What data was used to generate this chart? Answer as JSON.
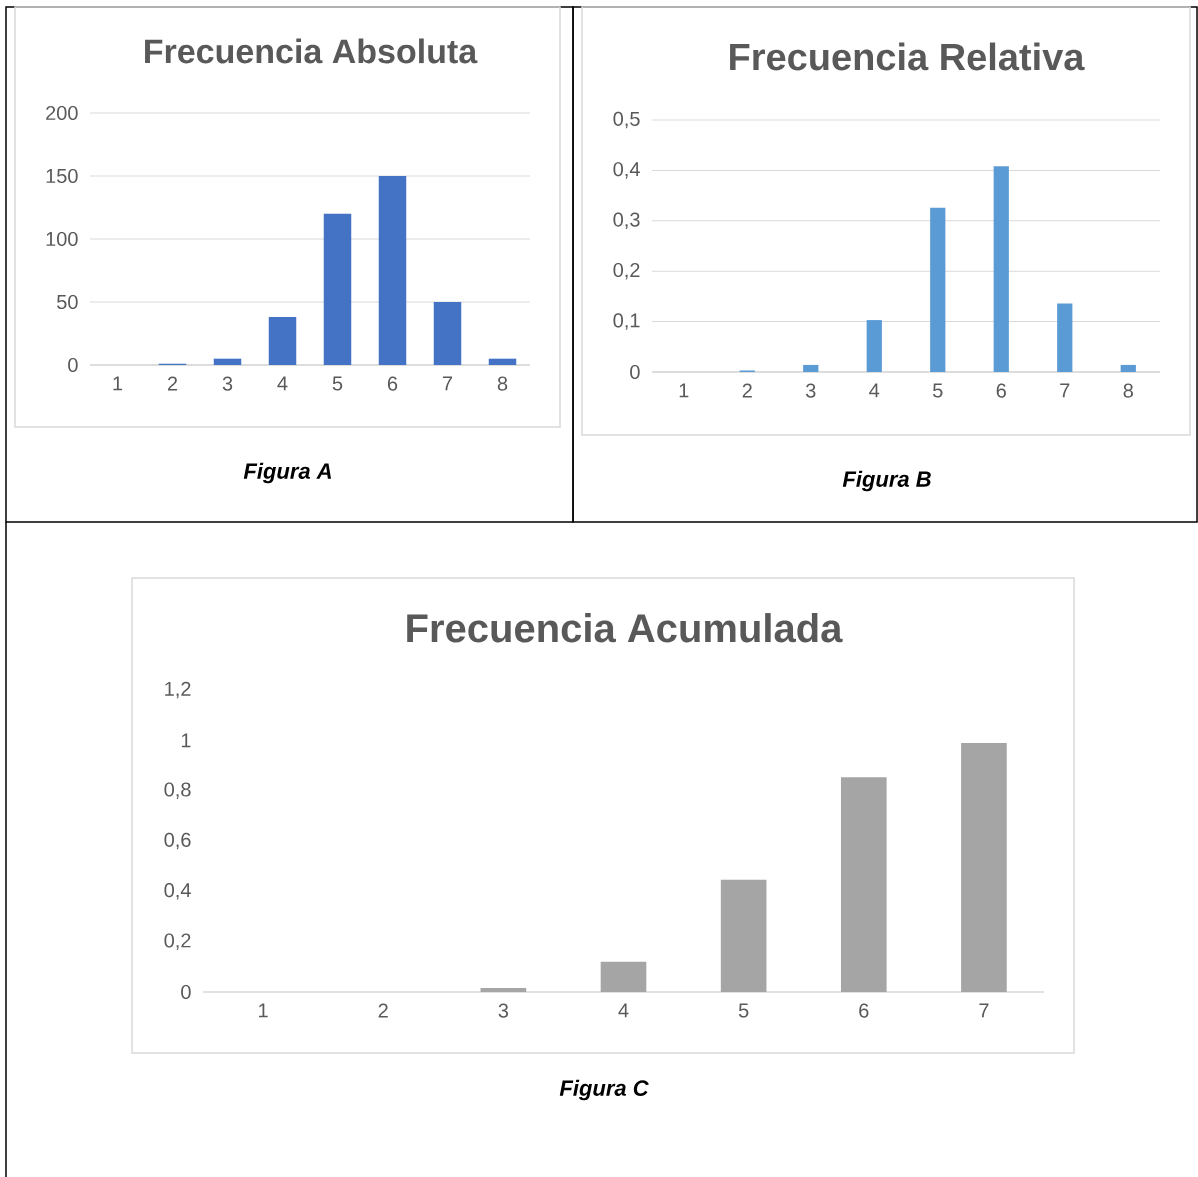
{
  "chart_data": [
    {
      "type": "bar",
      "title": "Frecuencia Absoluta",
      "categories": [
        "1",
        "2",
        "3",
        "4",
        "5",
        "6",
        "7",
        "8"
      ],
      "values": [
        0,
        1,
        5,
        38,
        120,
        150,
        50,
        5
      ],
      "color": "#4472c4",
      "ylim": [
        0,
        200
      ],
      "yticks": [
        0,
        50,
        100,
        150,
        200
      ],
      "grid": "y",
      "annotations": [
        "Figura A"
      ]
    },
    {
      "type": "bar",
      "title": "Frecuencia Relativa",
      "categories": [
        "1",
        "2",
        "3",
        "4",
        "5",
        "6",
        "7",
        "8"
      ],
      "values": [
        0,
        0.003,
        0.014,
        0.103,
        0.326,
        0.408,
        0.136,
        0.014
      ],
      "color": "#5b9bd5",
      "ylim": [
        0,
        0.5
      ],
      "yticks": [
        0,
        {
          "value": 0.1,
          "label": "0,1"
        },
        {
          "value": 0.2,
          "label": "0,2"
        },
        {
          "value": 0.3,
          "label": "0,3"
        },
        {
          "value": 0.4,
          "label": "0,4"
        },
        {
          "value": 0.5,
          "label": "0,5"
        }
      ],
      "grid": "y",
      "annotations": [
        "Figura B"
      ]
    },
    {
      "type": "bar",
      "title": "Frecuencia Acumulada",
      "categories": [
        "1",
        "2",
        "3",
        "4",
        "5",
        "6",
        "7"
      ],
      "values": [
        0,
        null,
        0.016,
        0.12,
        0.446,
        0.853,
        0.989
      ],
      "color": "#a5a5a5",
      "ylim": [
        0,
        1.2
      ],
      "yticks": [
        0,
        {
          "value": 0.2,
          "label": "0,2"
        },
        {
          "value": 0.4,
          "label": "0,4"
        },
        {
          "value": 0.6,
          "label": "0,6"
        },
        {
          "value": 0.8,
          "label": "0,8"
        },
        1,
        {
          "value": 1.2,
          "label": "1,2"
        }
      ],
      "annotations": [
        "Figura C"
      ]
    }
  ]
}
